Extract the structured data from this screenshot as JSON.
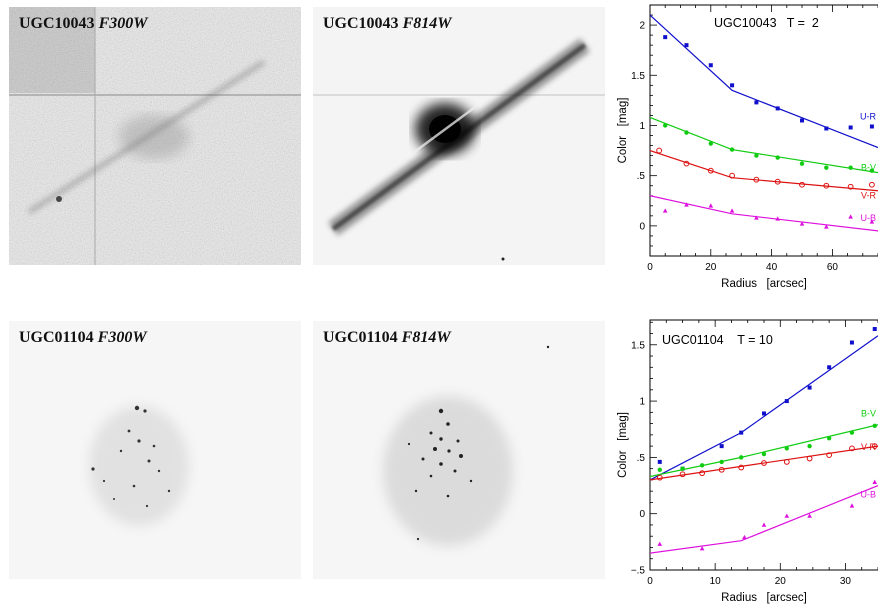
{
  "panels": [
    {
      "galaxy": "UGC10043",
      "filter": "F300W"
    },
    {
      "galaxy": "UGC10043",
      "filter": "F814W"
    },
    {
      "galaxy": "UGC01104",
      "filter": "F300W"
    },
    {
      "galaxy": "UGC01104",
      "filter": "F814W"
    }
  ],
  "chart_data": [
    {
      "type": "line",
      "title": "UGC10043   T =  2",
      "xlabel": "Radius   [arcsec]",
      "ylabel": "Color   [mag]",
      "xlim": [
        0,
        75
      ],
      "ylim": [
        -0.3,
        2.2
      ],
      "xticks": [
        0,
        20,
        40,
        60
      ],
      "xticklabels": [
        "0",
        "20",
        "40",
        "60"
      ],
      "yticks": [
        0,
        0.5,
        1,
        1.5,
        2
      ],
      "yticklabels": [
        "0",
        ".5",
        "1",
        "1.5",
        "2"
      ],
      "series": [
        {
          "name": "U-R",
          "color": "#1010cc",
          "marker": "square",
          "points": [
            [
              5,
              1.88
            ],
            [
              12,
              1.8
            ],
            [
              20,
              1.6
            ],
            [
              27,
              1.4
            ],
            [
              35,
              1.23
            ],
            [
              42,
              1.17
            ],
            [
              50,
              1.05
            ],
            [
              58,
              0.97
            ],
            [
              66,
              0.98
            ],
            [
              73,
              0.99
            ]
          ],
          "fit": [
            [
              0,
              2.1
            ],
            [
              27,
              1.35
            ],
            [
              75,
              0.78
            ]
          ]
        },
        {
          "name": "B-V",
          "color": "#10cc10",
          "marker": "dot",
          "points": [
            [
              5,
              1.0
            ],
            [
              12,
              0.93
            ],
            [
              20,
              0.82
            ],
            [
              27,
              0.76
            ],
            [
              35,
              0.7
            ],
            [
              42,
              0.68
            ],
            [
              50,
              0.62
            ],
            [
              58,
              0.58
            ],
            [
              66,
              0.58
            ],
            [
              73,
              0.55
            ]
          ],
          "fit": [
            [
              0,
              1.08
            ],
            [
              27,
              0.76
            ],
            [
              75,
              0.53
            ]
          ]
        },
        {
          "name": "V-R",
          "color": "#dd1111",
          "marker": "circle",
          "points": [
            [
              3,
              0.75
            ],
            [
              12,
              0.62
            ],
            [
              20,
              0.55
            ],
            [
              27,
              0.5
            ],
            [
              35,
              0.46
            ],
            [
              42,
              0.44
            ],
            [
              50,
              0.41
            ],
            [
              58,
              0.4
            ],
            [
              66,
              0.39
            ],
            [
              73,
              0.41
            ]
          ],
          "fit": [
            [
              0,
              0.75
            ],
            [
              27,
              0.48
            ],
            [
              75,
              0.35
            ]
          ]
        },
        {
          "name": "U-B",
          "color": "#dd11dd",
          "marker": "triangle",
          "points": [
            [
              5,
              0.15
            ],
            [
              12,
              0.21
            ],
            [
              20,
              0.2
            ],
            [
              27,
              0.15
            ],
            [
              35,
              0.08
            ],
            [
              42,
              0.07
            ],
            [
              50,
              0.02
            ],
            [
              58,
              -0.01
            ],
            [
              66,
              0.09
            ],
            [
              73,
              0.04
            ]
          ],
          "fit": [
            [
              0,
              0.3
            ],
            [
              27,
              0.12
            ],
            [
              75,
              -0.05
            ]
          ]
        }
      ]
    },
    {
      "type": "line",
      "title": "UGC01104    T = 10",
      "xlabel": "Radius   [arcsec]",
      "ylabel": "Color   [mag]",
      "xlim": [
        0,
        35
      ],
      "ylim": [
        -0.5,
        1.72
      ],
      "xticks": [
        0,
        10,
        20,
        30
      ],
      "xticklabels": [
        "0",
        "10",
        "20",
        "30"
      ],
      "yticks": [
        -0.5,
        0,
        0.5,
        1,
        1.5
      ],
      "yticklabels": [
        "−.5",
        "0",
        ".5",
        "1",
        "1.5"
      ],
      "series": [
        {
          "name": "U-R",
          "color": "#1010cc",
          "marker": "square",
          "points": [
            [
              1.5,
              0.46
            ],
            [
              5,
              0.4
            ],
            [
              11,
              0.6
            ],
            [
              14,
              0.72
            ],
            [
              17.5,
              0.89
            ],
            [
              21,
              1.0
            ],
            [
              24.5,
              1.12
            ],
            [
              27.5,
              1.3
            ],
            [
              31,
              1.52
            ],
            [
              34.5,
              1.64
            ]
          ],
          "fit": [
            [
              0,
              0.3
            ],
            [
              14,
              0.72
            ],
            [
              35,
              1.58
            ]
          ]
        },
        {
          "name": "B-V",
          "color": "#10cc10",
          "marker": "dot",
          "points": [
            [
              1.5,
              0.39
            ],
            [
              5,
              0.4
            ],
            [
              8,
              0.43
            ],
            [
              11,
              0.46
            ],
            [
              14,
              0.5
            ],
            [
              17.5,
              0.53
            ],
            [
              21,
              0.58
            ],
            [
              24.5,
              0.6
            ],
            [
              27.5,
              0.67
            ],
            [
              31,
              0.72
            ],
            [
              34.5,
              0.78
            ]
          ],
          "fit": [
            [
              0,
              0.33
            ],
            [
              14,
              0.5
            ],
            [
              35,
              0.79
            ]
          ]
        },
        {
          "name": "V-R",
          "color": "#dd1111",
          "marker": "circle",
          "points": [
            [
              1.5,
              0.32
            ],
            [
              5,
              0.35
            ],
            [
              8,
              0.36
            ],
            [
              11,
              0.39
            ],
            [
              14,
              0.41
            ],
            [
              17.5,
              0.45
            ],
            [
              21,
              0.46
            ],
            [
              24.5,
              0.49
            ],
            [
              27.5,
              0.52
            ],
            [
              31,
              0.58
            ],
            [
              34.5,
              0.6
            ]
          ],
          "fit": [
            [
              0,
              0.3
            ],
            [
              14,
              0.42
            ],
            [
              35,
              0.6
            ]
          ]
        },
        {
          "name": "U-B",
          "color": "#dd11dd",
          "marker": "triangle",
          "points": [
            [
              1.5,
              -0.27
            ],
            [
              8,
              -0.31
            ],
            [
              14.5,
              -0.21
            ],
            [
              17.5,
              -0.1
            ],
            [
              21,
              -0.02
            ],
            [
              24.5,
              -0.02
            ],
            [
              31,
              0.07
            ],
            [
              34.5,
              0.28
            ]
          ],
          "fit": [
            [
              0,
              -0.35
            ],
            [
              14,
              -0.24
            ],
            [
              35,
              0.25
            ]
          ]
        }
      ]
    }
  ]
}
